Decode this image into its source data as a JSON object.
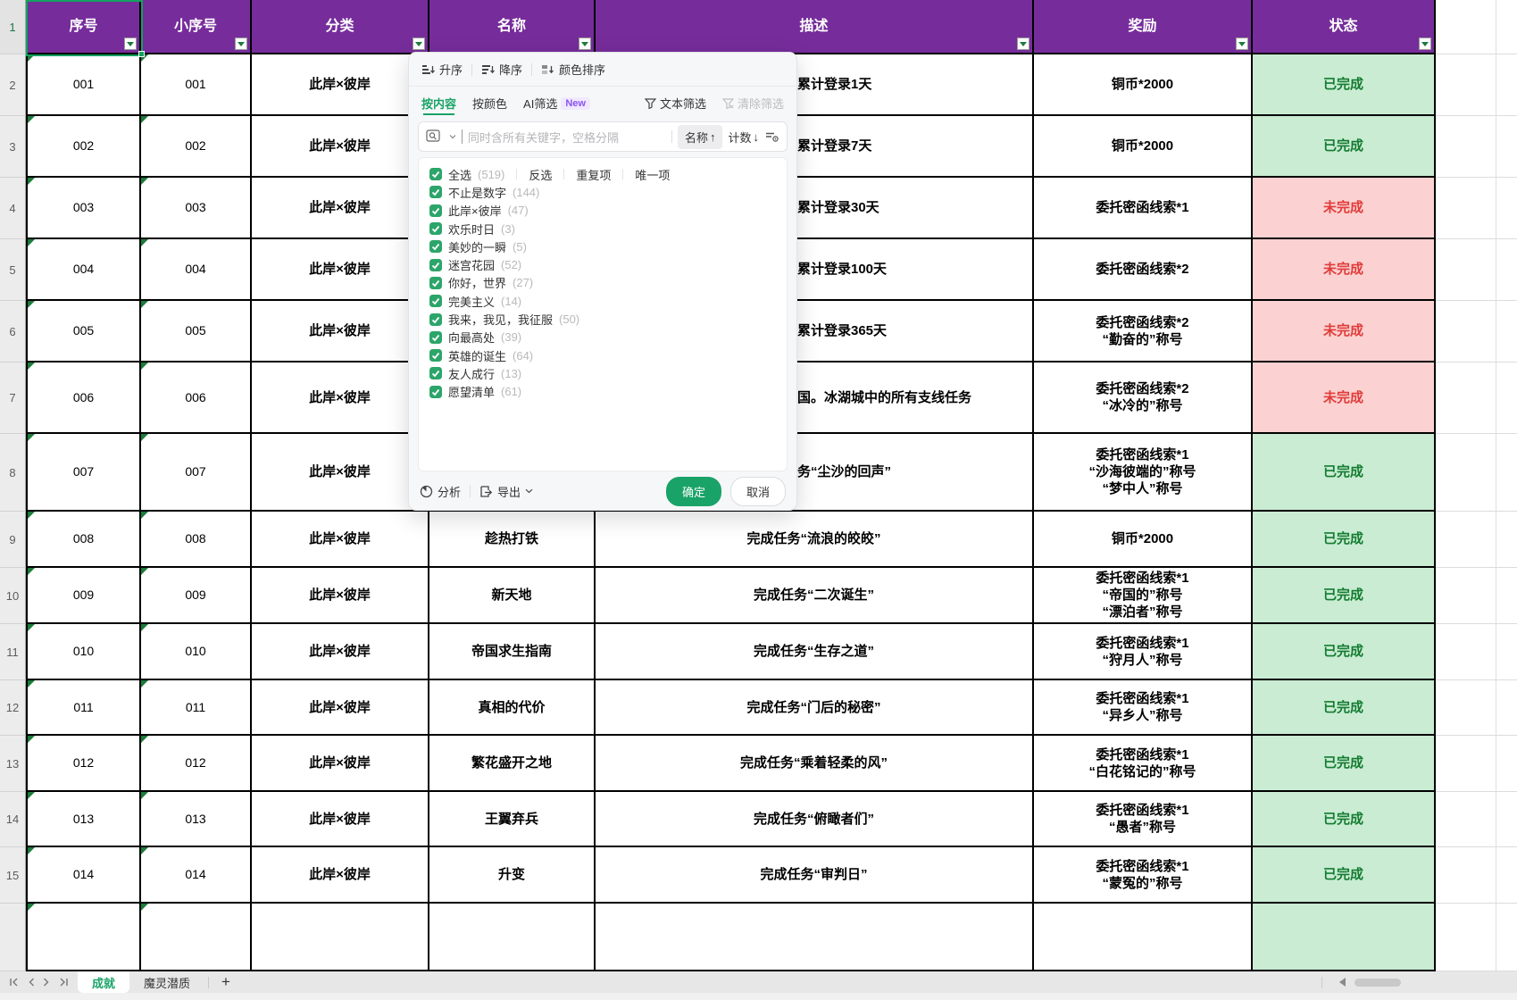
{
  "header": {
    "columns": [
      "序号",
      "小序号",
      "分类",
      "名称",
      "描述",
      "奖励",
      "状态"
    ]
  },
  "rows": [
    {
      "num": "2",
      "a": "001",
      "b": "001",
      "c": "此岸×彼岸",
      "name": "",
      "desc": "累计登录1天",
      "desc_clipped": true,
      "reward": [
        "铜币*2000"
      ],
      "status": "已完成",
      "done": true
    },
    {
      "num": "3",
      "a": "002",
      "b": "002",
      "c": "此岸×彼岸",
      "name": "",
      "desc": "累计登录7天",
      "desc_clipped": true,
      "reward": [
        "铜币*2000"
      ],
      "status": "已完成",
      "done": true
    },
    {
      "num": "4",
      "a": "003",
      "b": "003",
      "c": "此岸×彼岸",
      "name": "",
      "desc": "累计登录30天",
      "desc_clipped": true,
      "reward": [
        "委托密函线索*1"
      ],
      "status": "未完成",
      "done": false
    },
    {
      "num": "5",
      "a": "004",
      "b": "004",
      "c": "此岸×彼岸",
      "name": "",
      "desc": "累计登录100天",
      "desc_clipped": true,
      "reward": [
        "委托密函线索*2"
      ],
      "status": "未完成",
      "done": false
    },
    {
      "num": "6",
      "a": "005",
      "b": "005",
      "c": "此岸×彼岸",
      "name": "",
      "desc": "累计登录365天",
      "desc_clipped": true,
      "reward": [
        "委托密函线索*2",
        "“勤奋的”称号"
      ],
      "status": "未完成",
      "done": false
    },
    {
      "num": "7",
      "a": "006",
      "b": "006",
      "c": "此岸×彼岸",
      "name": "",
      "desc": "国。冰湖城中的所有支线任务",
      "desc_clipped": true,
      "reward": [
        "委托密函线索*2",
        "“冰冷的”称号"
      ],
      "status": "未完成",
      "done": false
    },
    {
      "num": "8",
      "a": "007",
      "b": "007",
      "c": "此岸×彼岸",
      "name": "",
      "desc": "务“尘沙的回声”",
      "desc_clipped": true,
      "reward": [
        "委托密函线索*1",
        "“沙海彼端的”称号",
        "“梦中人”称号"
      ],
      "status": "已完成",
      "done": true
    },
    {
      "num": "9",
      "a": "008",
      "b": "008",
      "c": "此岸×彼岸",
      "name": "趁热打铁",
      "desc": "完成任务“流浪的皎皎”",
      "reward": [
        "铜币*2000"
      ],
      "status": "已完成",
      "done": true
    },
    {
      "num": "10",
      "a": "009",
      "b": "009",
      "c": "此岸×彼岸",
      "name": "新天地",
      "desc": "完成任务“二次诞生”",
      "reward": [
        "委托密函线索*1",
        "“帝国的”称号",
        "“漂泊者”称号"
      ],
      "status": "已完成",
      "done": true
    },
    {
      "num": "11",
      "a": "010",
      "b": "010",
      "c": "此岸×彼岸",
      "name": "帝国求生指南",
      "desc": "完成任务“生存之道”",
      "reward": [
        "委托密函线索*1",
        "“狩月人”称号"
      ],
      "status": "已完成",
      "done": true
    },
    {
      "num": "12",
      "a": "011",
      "b": "011",
      "c": "此岸×彼岸",
      "name": "真相的代价",
      "desc": "完成任务“门后的秘密”",
      "reward": [
        "委托密函线索*1",
        "“异乡人”称号"
      ],
      "status": "已完成",
      "done": true
    },
    {
      "num": "13",
      "a": "012",
      "b": "012",
      "c": "此岸×彼岸",
      "name": "繁花盛开之地",
      "desc": "完成任务“乘着轻柔的风”",
      "reward": [
        "委托密函线索*1",
        "“白花铭记的”称号"
      ],
      "status": "已完成",
      "done": true
    },
    {
      "num": "14",
      "a": "013",
      "b": "013",
      "c": "此岸×彼岸",
      "name": "王翼弃兵",
      "desc": "完成任务“俯瞰者们”",
      "reward": [
        "委托密函线索*1",
        "“愚者”称号"
      ],
      "status": "已完成",
      "done": true
    },
    {
      "num": "15",
      "a": "014",
      "b": "014",
      "c": "此岸×彼岸",
      "name": "升变",
      "desc": "完成任务“审判日”",
      "reward": [
        "委托密函线索*1",
        "“蒙冤的”称号"
      ],
      "status": "已完成",
      "done": true
    }
  ],
  "filter": {
    "sort_asc": "升序",
    "sort_desc": "降序",
    "sort_color": "颜色排序",
    "tab_content": "按内容",
    "tab_color": "按颜色",
    "tab_ai": "AI筛选",
    "tab_ai_badge": "New",
    "text_filter": "文本筛选",
    "clear_filter": "清除筛选",
    "search_placeholder": "同时含所有关键字，空格分隔",
    "field_chip": "名称",
    "field_arrow": "↑",
    "count_chip": "计数",
    "count_arrow": "↓",
    "select_all": "全选",
    "select_all_count": "(519)",
    "invert": "反选",
    "dupes": "重复项",
    "unique": "唯一项",
    "items": [
      {
        "label": "不止是数字",
        "count": "(144)"
      },
      {
        "label": "此岸×彼岸",
        "count": "(47)"
      },
      {
        "label": "欢乐时日",
        "count": "(3)"
      },
      {
        "label": "美妙的一瞬",
        "count": "(5)"
      },
      {
        "label": "迷宫花园",
        "count": "(52)"
      },
      {
        "label": "你好，世界",
        "count": "(27)"
      },
      {
        "label": "完美主义",
        "count": "(14)"
      },
      {
        "label": "我来，我见，我征服",
        "count": "(50)"
      },
      {
        "label": "向最高处",
        "count": "(39)"
      },
      {
        "label": "英雄的诞生",
        "count": "(64)"
      },
      {
        "label": "友人成行",
        "count": "(13)"
      },
      {
        "label": "愿望清单",
        "count": "(61)"
      }
    ],
    "analyze": "分析",
    "export": "导出",
    "ok": "确定",
    "cancel": "取消"
  },
  "sheet_bar": {
    "tab_active": "成就",
    "tab_other": "魔灵潜质",
    "add": "+"
  },
  "colors": {
    "header_bg": "#762d9b",
    "done_bg": "#c9ecd3",
    "done_fg": "#157c31",
    "undone_bg": "#fbd2d1",
    "undone_fg": "#e03c3a",
    "accent_green": "#1aa368"
  }
}
